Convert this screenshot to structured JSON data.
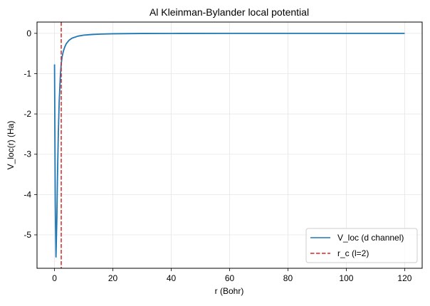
{
  "chart_data": {
    "type": "line",
    "title": "Al Kleinman-Bylander local potential",
    "xlabel": "r (Bohr)",
    "ylabel": "V_loc(r) (Ha)",
    "xlim": [
      -6,
      126
    ],
    "ylim": [
      -5.83,
      0.28
    ],
    "xticks": [
      0,
      20,
      40,
      60,
      80,
      100,
      120
    ],
    "yticks": [
      0,
      -1,
      -2,
      -3,
      -4,
      -5
    ],
    "grid": true,
    "legend_position": "lower right",
    "series": [
      {
        "name": "V_loc (d channel)",
        "color": "#1f77b4",
        "style": "solid",
        "x": [
          0,
          0.25,
          0.5,
          0.8,
          1.0,
          1.3,
          1.6,
          2.0,
          2.3,
          2.6,
          3.0,
          3.5,
          4.0,
          5.0,
          6.0,
          8.0,
          10.0,
          13.0,
          16.0,
          20.0,
          30.0,
          40.0,
          60.0,
          80.0,
          100.0,
          120.0
        ],
        "y": [
          -0.77,
          -4.2,
          -5.55,
          -4.6,
          -3.6,
          -2.5,
          -1.7,
          -1.05,
          -0.75,
          -0.58,
          -0.45,
          -0.34,
          -0.26,
          -0.17,
          -0.12,
          -0.07,
          -0.045,
          -0.028,
          -0.018,
          -0.01,
          -0.004,
          -0.002,
          -0.001,
          0.0,
          0.0,
          0.0
        ]
      },
      {
        "name": "r_c (l=2)",
        "color": "#d62728",
        "style": "dashed",
        "type": "vline",
        "x_value": 2.3
      }
    ]
  },
  "labels": {
    "title": "Al Kleinman-Bylander local potential",
    "xlabel": "r (Bohr)",
    "ylabel": "V_loc(r) (Ha)",
    "legend": [
      "V_loc (d channel)",
      "r_c (l=2)"
    ]
  }
}
